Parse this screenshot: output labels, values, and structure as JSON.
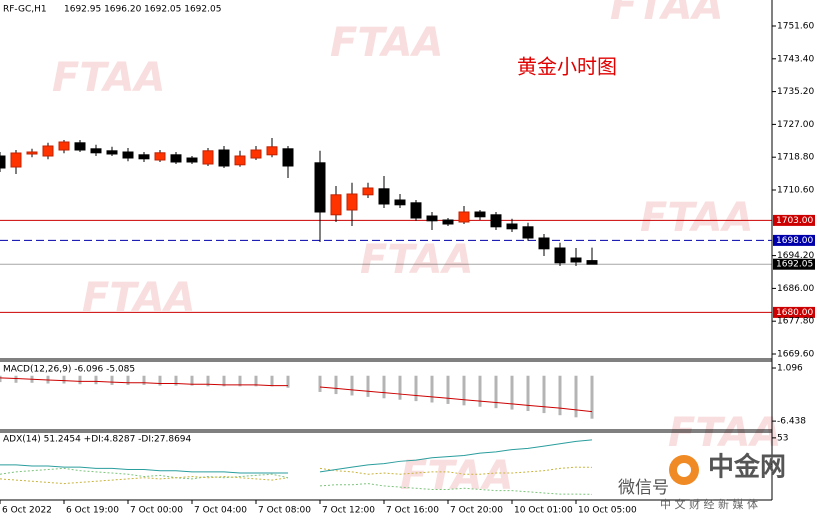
{
  "chart_data": [
    {
      "type": "candlestick",
      "title": "黄金小时图",
      "symbol": "RF-GC,H1",
      "ohlc_label": "1692.95 1696.20 1692.05 1692.05",
      "categories": [
        "6 Oct 2022",
        null,
        null,
        null,
        "6 Oct 19:00",
        null,
        null,
        null,
        "7 Oct 00:00",
        null,
        null,
        null,
        "7 Oct 04:00",
        null,
        null,
        null,
        "7 Oct 08:00",
        null,
        null,
        null,
        "7 Oct 12:00",
        null,
        null,
        null,
        "7 Oct 16:00",
        null,
        null,
        null,
        "7 Oct 20:00",
        null,
        null,
        null,
        "10 Oct 01:00",
        null,
        null,
        null,
        "10 Oct 05:00",
        null
      ],
      "open": [
        1719.1,
        1716.35,
        1719.6,
        1719.1,
        1720.6,
        1722.4,
        1720.9,
        1720.4,
        1720.1,
        1719.4,
        1718.1,
        1719.4,
        1718.6,
        1717.1,
        1720.6,
        1716.9,
        1718.6,
        1719.4,
        1720.9,
        null,
        1717.4,
        1704.4,
        1705.6,
        1709.4,
        1710.9,
        1708.1,
        1707.4,
        1704.1,
        1703.1,
        1702.6,
        1705.1,
        1704.4,
        1702.1,
        1701.4,
        1698.6,
        1696.1,
        1693.6,
        1692.95
      ],
      "high": [
        1720.1,
        1720.6,
        1720.9,
        1722.4,
        1723.1,
        1723.1,
        1721.9,
        1721.4,
        1721.1,
        1720.1,
        1720.6,
        1720.1,
        1719.1,
        1721.1,
        1721.6,
        1720.4,
        1721.6,
        1723.6,
        1721.6,
        null,
        1720.4,
        1711.6,
        1712.4,
        1712.4,
        1714.1,
        1709.6,
        1708.1,
        1705.1,
        1703.6,
        1706.6,
        1705.6,
        1705.1,
        1703.4,
        1702.4,
        1699.6,
        1697.4,
        1696.1,
        1696.2
      ],
      "low": [
        1715.1,
        1714.6,
        1718.8,
        1718.3,
        1719.8,
        1720.1,
        1719.1,
        1719.1,
        1717.8,
        1717.6,
        1717.6,
        1717.1,
        1717.1,
        1716.6,
        1716.1,
        1716.4,
        1718.1,
        1718.8,
        1713.6,
        null,
        1697.6,
        1702.6,
        1701.6,
        1708.6,
        1706.1,
        1706.1,
        1702.9,
        1700.6,
        1701.6,
        1702.1,
        1703.1,
        1700.6,
        1700.1,
        1697.9,
        1694.1,
        1691.6,
        1691.6,
        1692.05
      ],
      "close": [
        1716.1,
        1719.85,
        1720.1,
        1721.6,
        1722.6,
        1720.6,
        1719.9,
        1719.6,
        1718.6,
        1718.4,
        1719.9,
        1717.6,
        1717.6,
        1720.4,
        1716.6,
        1719.1,
        1720.6,
        1721.4,
        1716.6,
        null,
        1705.1,
        1709.4,
        1709.6,
        1711.1,
        1707.1,
        1706.9,
        1703.6,
        1702.9,
        1702.1,
        1705.1,
        1703.9,
        1701.4,
        1700.9,
        1698.6,
        1695.9,
        1692.4,
        1692.6,
        1692.05
      ],
      "up_color": "#ff3300",
      "down_color": "#000000",
      "ylim": [
        1668.6,
        1758.1
      ],
      "yticks": [
        {
          "value": 1751.6,
          "label": "1751.60"
        },
        {
          "value": 1743.4,
          "label": "1743.40"
        },
        {
          "value": 1735.2,
          "label": "1735.20"
        },
        {
          "value": 1727,
          "label": "1727.00"
        },
        {
          "value": 1718.8,
          "label": "1718.80"
        },
        {
          "value": 1710.6,
          "label": "1710.60"
        },
        {
          "value": 1694.2,
          "label": "1694.20"
        },
        {
          "value": 1686,
          "label": "1686.00"
        },
        {
          "value": 1677.8,
          "label": "1677.80"
        },
        {
          "value": 1669.6,
          "label": "1669.60"
        }
      ],
      "hlines": [
        {
          "value": 1703,
          "label": "1703.00",
          "color": "#cc0000",
          "style": "solid"
        },
        {
          "value": 1698,
          "label": "1698.00",
          "color": "#0000aa",
          "style": "dashed"
        },
        {
          "value": 1680,
          "label": "1680.00",
          "color": "#cc0000",
          "style": "solid"
        },
        {
          "value": 1692.05,
          "label": "1692.05",
          "color": "#000000",
          "style": "solid"
        }
      ]
    },
    {
      "type": "macd",
      "title": "MACD(12,26,9) -6.096 -5.085",
      "macd": [
        -0.9,
        -1.0,
        -1.0,
        -1.1,
        -1.1,
        -1.2,
        -1.2,
        -1.3,
        -1.3,
        -1.3,
        -1.4,
        -1.4,
        -1.4,
        -1.5,
        -1.5,
        -1.5,
        -1.5,
        -1.5,
        -1.7,
        null,
        -2.3,
        -2.6,
        -2.8,
        -3.0,
        -3.2,
        -3.4,
        -3.6,
        -3.8,
        -4.0,
        -4.2,
        -4.4,
        -4.6,
        -4.8,
        -5.0,
        -5.3,
        -5.6,
        -5.9,
        -6.096
      ],
      "signal": [
        -0.3,
        -0.4,
        -0.5,
        -0.6,
        -0.7,
        -0.8,
        -0.8,
        -0.9,
        -1.0,
        -1.0,
        -1.1,
        -1.1,
        -1.2,
        -1.2,
        -1.3,
        -1.3,
        -1.3,
        -1.4,
        -1.4,
        null,
        -1.6,
        -1.8,
        -2.0,
        -2.2,
        -2.4,
        -2.6,
        -2.8,
        -3.0,
        -3.2,
        -3.4,
        -3.6,
        -3.8,
        -4.0,
        -4.2,
        -4.4,
        -4.6,
        -4.85,
        -5.085
      ],
      "macd_color": "#b4b4b4",
      "signal_color": "#cc0000",
      "ylim": [
        -7.7,
        1.95
      ],
      "yticks": [
        1.096,
        -6.438
      ]
    },
    {
      "type": "adx",
      "title": "ADX(14) 51.2454 +DI:4.8287 -DI:27.8694",
      "adx": [
        30,
        30,
        29,
        29,
        28,
        28,
        27,
        27,
        26,
        26,
        25,
        25,
        24,
        24,
        24,
        23,
        23,
        23,
        23,
        null,
        24,
        26,
        28,
        30,
        31,
        33,
        34,
        36,
        37,
        38,
        40,
        41,
        43,
        44,
        46,
        48,
        50,
        51.2454
      ],
      "plus_di": [
        22,
        24,
        25,
        26,
        27,
        25,
        24,
        23,
        22,
        20,
        21,
        19,
        18,
        20,
        19,
        20,
        21,
        22,
        19,
        null,
        12,
        13,
        13,
        14,
        12,
        11,
        10,
        9,
        9,
        10,
        9,
        8,
        8,
        7,
        6,
        5,
        5,
        4.8287
      ],
      "minus_di": [
        18,
        17,
        16,
        15,
        14,
        15,
        16,
        17,
        18,
        19,
        18,
        19,
        20,
        19,
        20,
        19,
        18,
        17,
        19,
        null,
        27,
        25,
        24,
        22,
        23,
        22,
        23,
        24,
        24,
        22,
        22,
        23,
        23,
        24,
        25,
        27,
        28,
        27.8694
      ],
      "adx_color": "#2a9d9d",
      "plus_di_color": "#7cc47c",
      "minus_di_color": "#c8b43c",
      "ylim": [
        0,
        58
      ],
      "yticks": [
        53
      ]
    }
  ],
  "watermark": "FTAA",
  "branding": {
    "wechat": "微信号",
    "name": "中金网",
    "slogan": "中 文 财 经 新 媒 体"
  }
}
